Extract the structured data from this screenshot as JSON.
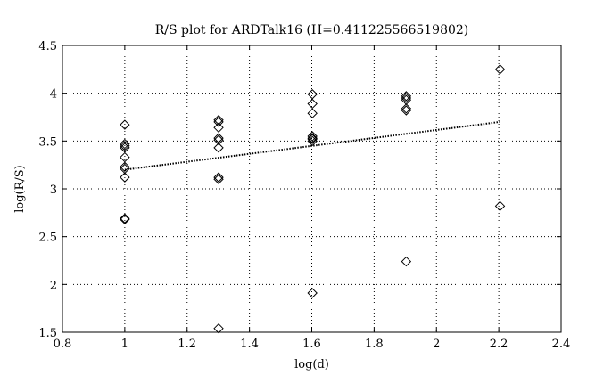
{
  "chart_data": {
    "type": "scatter",
    "title": "R/S plot for ARDTalk16 (H=0.411225566519802)",
    "xlabel": "log(d)",
    "ylabel": "log(R/S)",
    "xlim": [
      0.8,
      2.4
    ],
    "ylim": [
      1.5,
      4.5
    ],
    "xticks": [
      0.8,
      1,
      1.2,
      1.4,
      1.6,
      1.8,
      2,
      2.2,
      2.4
    ],
    "xtick_labels": [
      "0.8",
      "1",
      "1.2",
      "1.4",
      "1.6",
      "1.8",
      "2",
      "2.2",
      "2.4"
    ],
    "yticks": [
      1.5,
      2,
      2.5,
      3,
      3.5,
      4,
      4.5
    ],
    "ytick_labels": [
      "1.5",
      "2",
      "2.5",
      "3",
      "3.5",
      "4",
      "4.5"
    ],
    "grid": true,
    "marker": "diamond",
    "points": [
      {
        "x": 1.0,
        "y": 3.67
      },
      {
        "x": 1.0,
        "y": 3.47
      },
      {
        "x": 1.0,
        "y": 3.45
      },
      {
        "x": 1.0,
        "y": 3.43
      },
      {
        "x": 1.0,
        "y": 3.33
      },
      {
        "x": 1.0,
        "y": 3.23
      },
      {
        "x": 1.0,
        "y": 3.21
      },
      {
        "x": 1.0,
        "y": 3.12
      },
      {
        "x": 1.0,
        "y": 2.69
      },
      {
        "x": 1.0,
        "y": 2.68
      },
      {
        "x": 1.301,
        "y": 3.72
      },
      {
        "x": 1.301,
        "y": 3.7
      },
      {
        "x": 1.301,
        "y": 3.64
      },
      {
        "x": 1.301,
        "y": 3.53
      },
      {
        "x": 1.301,
        "y": 3.51
      },
      {
        "x": 1.301,
        "y": 3.43
      },
      {
        "x": 1.301,
        "y": 3.12
      },
      {
        "x": 1.301,
        "y": 3.1
      },
      {
        "x": 1.301,
        "y": 1.54
      },
      {
        "x": 1.602,
        "y": 3.99
      },
      {
        "x": 1.602,
        "y": 3.89
      },
      {
        "x": 1.602,
        "y": 3.79
      },
      {
        "x": 1.602,
        "y": 3.55
      },
      {
        "x": 1.602,
        "y": 3.53
      },
      {
        "x": 1.602,
        "y": 3.52
      },
      {
        "x": 1.602,
        "y": 3.5
      },
      {
        "x": 1.602,
        "y": 1.91
      },
      {
        "x": 1.903,
        "y": 3.97
      },
      {
        "x": 1.903,
        "y": 3.95
      },
      {
        "x": 1.903,
        "y": 3.93
      },
      {
        "x": 1.903,
        "y": 3.84
      },
      {
        "x": 1.903,
        "y": 3.82
      },
      {
        "x": 1.903,
        "y": 2.24
      },
      {
        "x": 2.204,
        "y": 4.25
      },
      {
        "x": 2.204,
        "y": 2.82
      }
    ],
    "fit_line": {
      "x": [
        1.0,
        2.204
      ],
      "y": [
        3.2,
        3.7
      ],
      "style": "dotted"
    }
  }
}
